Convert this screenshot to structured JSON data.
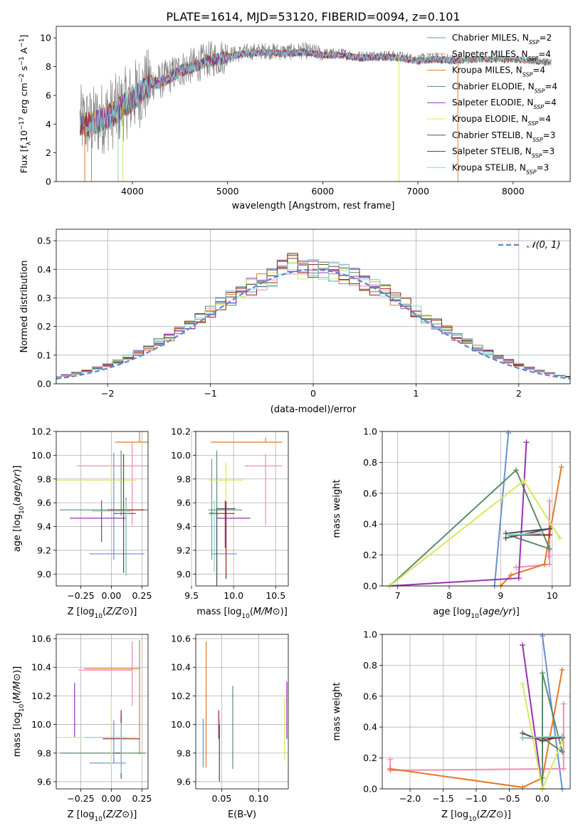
{
  "figure_title": "PLATE=1614, MJD=53120, FIBERID=0094, z=0.101",
  "colors": {
    "chab_miles": "#6a8fd6",
    "salp_miles": "#f28ab0",
    "krou_miles": "#e07b2a",
    "chab_elodie": "#5e8c6a",
    "salp_elodie": "#9a30b0",
    "krou_elodie": "#d4ea5c",
    "chab_stelib": "#505050",
    "salp_stelib": "#9a1c1c",
    "krou_stelib": "#7fd6d2",
    "data": "#808080"
  },
  "chart_data": [
    {
      "id": "spectrum",
      "type": "line",
      "title": "",
      "xlabel": "wavelength [Angstrom, rest frame]",
      "ylabel": "Flux [f_λ10^-17 erg cm^-2 s^-1 A^-1]",
      "xlim": [
        3200,
        8600
      ],
      "ylim": [
        0,
        10.8
      ],
      "xticks": [
        "4000",
        "5000",
        "6000",
        "7000",
        "8000"
      ],
      "yticks": [
        "0",
        "2",
        "4",
        "6",
        "8",
        "10"
      ],
      "grid": false,
      "legend_position": "right",
      "legend": [
        {
          "base": "Chabrier MILES, N",
          "sub": "SSP",
          "tail": "=2",
          "color": "chab_miles"
        },
        {
          "base": "Salpeter MILES, N",
          "sub": "SSP",
          "tail": "=4",
          "color": "salp_miles"
        },
        {
          "base": "Kroupa MILES, N",
          "sub": "SSP",
          "tail": "=4",
          "color": "krou_miles"
        },
        {
          "base": "Chabrier ELODIE, N",
          "sub": "SSP",
          "tail": "=4",
          "color": "chab_elodie"
        },
        {
          "base": "Salpeter ELODIE, N",
          "sub": "SSP",
          "tail": "=4",
          "color": "salp_elodie"
        },
        {
          "base": "Kroupa ELODIE, N",
          "sub": "SSP",
          "tail": "=4",
          "color": "krou_elodie"
        },
        {
          "base": "Chabrier STELIB, N",
          "sub": "SSP",
          "tail": "=3",
          "color": "chab_stelib"
        },
        {
          "base": "Salpeter STELIB, N",
          "sub": "SSP",
          "tail": "=3",
          "color": "salp_stelib"
        },
        {
          "base": "Kroupa STELIB, N",
          "sub": "SSP",
          "tail": "=3",
          "color": "krou_stelib"
        }
      ],
      "continuum": {
        "x": [
          3450,
          3550,
          3700,
          3800,
          3900,
          4000,
          4100,
          4200,
          4300,
          4400,
          4500,
          4600,
          4700,
          4800,
          4900,
          5000,
          5200,
          5400,
          5600,
          5800,
          6000,
          6200,
          6400,
          6600,
          6800,
          7000,
          7200,
          7400,
          7600,
          7800,
          8000,
          8200,
          8400
        ],
        "y": [
          4.2,
          4.0,
          4.5,
          4.8,
          5.3,
          5.8,
          6.4,
          6.9,
          7.0,
          7.4,
          7.8,
          8.0,
          8.2,
          8.5,
          8.6,
          8.8,
          9.0,
          9.1,
          9.0,
          9.1,
          8.9,
          8.9,
          8.7,
          8.8,
          8.7,
          8.5,
          8.6,
          8.5,
          8.6,
          8.6,
          8.6,
          8.5,
          8.4
        ]
      },
      "drops": [
        {
          "x": 3500,
          "color": "krou_miles"
        },
        {
          "x": 3570,
          "color": "krou_miles"
        },
        {
          "x": 3850,
          "color": "krou_stelib"
        },
        {
          "x": 3900,
          "color": "krou_elodie"
        },
        {
          "x": 6800,
          "color": "krou_elodie"
        },
        {
          "x": 7420,
          "color": "krou_miles"
        }
      ]
    },
    {
      "id": "residuals",
      "type": "bar",
      "title": "",
      "xlabel": "(data-model)/error",
      "ylabel": "Normed distribution",
      "xlim": [
        -2.5,
        2.5
      ],
      "ylim": [
        0,
        0.54
      ],
      "xticks": [
        "−2",
        "−1",
        "0",
        "1",
        "2"
      ],
      "yticks": [
        "0.0",
        "0.1",
        "0.2",
        "0.3",
        "0.4",
        "0.5"
      ],
      "grid": true,
      "legend_position": "top-right",
      "legend_label": "𝒩(0, 1)",
      "gaussian_sigma": 1.0,
      "bin_width": 0.1,
      "bin_start": -2.5
    },
    {
      "id": "age_vs_Z",
      "type": "scatter",
      "xlabel": "Z [log10(Z/Z⊙)]",
      "ylabel": "age  [log10(age/yr)]",
      "xlim": [
        -0.45,
        0.3
      ],
      "ylim": [
        8.9,
        10.2
      ],
      "xticks": [
        "−0.25",
        "0.00",
        "0.25"
      ],
      "yticks": [
        "9.0",
        "9.2",
        "9.4",
        "9.6",
        "9.8",
        "10.0",
        "10.2"
      ],
      "grid": true,
      "points": [
        {
          "color": "chab_miles",
          "x": 0.02,
          "xerr": [
            0.2,
            0.25
          ],
          "y": 9.17,
          "yerr": [
            0.05,
            0.85
          ]
        },
        {
          "color": "salp_miles",
          "x": 0.17,
          "xerr": [
            0.45,
            0.25
          ],
          "y": 9.91,
          "yerr": [
            0.5,
            0.2
          ]
        },
        {
          "color": "krou_miles",
          "x": 0.23,
          "xerr": [
            0.2,
            0.21
          ],
          "y": 10.11,
          "yerr": [
            0.0,
            0.09
          ]
        },
        {
          "color": "chab_elodie",
          "x": 0.08,
          "xerr": [
            0.5,
            0.4
          ],
          "y": 9.54,
          "yerr": [
            0.05,
            0.5
          ]
        },
        {
          "color": "salp_elodie",
          "x": -0.08,
          "xerr": [
            0.26,
            0.2
          ],
          "y": 9.47,
          "yerr": [
            0.2,
            0.15
          ]
        },
        {
          "color": "krou_elodie",
          "x": 0.0,
          "xerr": [
            0.45,
            0.2
          ],
          "y": 9.79,
          "yerr": [
            0.15,
            0.15
          ]
        },
        {
          "color": "chab_stelib",
          "x": 0.1,
          "xerr": [
            0.08,
            0.1
          ],
          "y": 9.51,
          "yerr": [
            0.5,
            0.5
          ]
        },
        {
          "color": "salp_stelib",
          "x": 0.12,
          "xerr": [
            0.15,
            0.15
          ],
          "y": 9.54,
          "yerr": [
            0.55,
            0.1
          ]
        },
        {
          "color": "krou_stelib",
          "x": 0.12,
          "xerr": [
            0.28,
            0.04
          ],
          "y": 9.53,
          "yerr": [
            0.55,
            0.1
          ]
        }
      ]
    },
    {
      "id": "age_vs_mass",
      "type": "scatter",
      "xlabel": "mass [log10(M/M⊙)]",
      "ylabel": "",
      "xlim": [
        9.55,
        10.65
      ],
      "ylim": [
        8.9,
        10.2
      ],
      "xticks": [
        "9.5",
        "10.0",
        "10.5"
      ],
      "yticks": [
        "9.0",
        "9.2",
        "9.4",
        "9.6",
        "9.8",
        "10.0",
        "10.2"
      ],
      "grid": true,
      "points": [
        {
          "color": "chab_miles",
          "x": 9.74,
          "xerr": [
            0.0,
            0.3
          ],
          "y": 9.17,
          "yerr": [
            0.05,
            0.8
          ]
        },
        {
          "color": "salp_miles",
          "x": 10.38,
          "xerr": [
            0.25,
            0.2
          ],
          "y": 9.91,
          "yerr": [
            0.5,
            0.1
          ]
        },
        {
          "color": "krou_miles",
          "x": 10.38,
          "xerr": [
            0.65,
            0.2
          ],
          "y": 10.11,
          "yerr": [
            0.0,
            0.04
          ]
        },
        {
          "color": "chab_elodie",
          "x": 9.8,
          "xerr": [
            0.1,
            0.3
          ],
          "y": 9.54,
          "yerr": [
            0.6,
            0.5
          ]
        },
        {
          "color": "salp_elodie",
          "x": 9.9,
          "xerr": [
            0.1,
            0.3
          ],
          "y": 9.47,
          "yerr": [
            0.25,
            0.15
          ]
        },
        {
          "color": "krou_elodie",
          "x": 9.91,
          "xerr": [
            0.2,
            0.2
          ],
          "y": 9.79,
          "yerr": [
            0.2,
            0.15
          ]
        },
        {
          "color": "chab_stelib",
          "x": 9.8,
          "xerr": [
            0.0,
            0.22
          ],
          "y": 9.55,
          "yerr": [
            0.65,
            0.0
          ]
        },
        {
          "color": "salp_stelib",
          "x": 9.91,
          "xerr": [
            0.2,
            0.1
          ],
          "y": 9.51,
          "yerr": [
            0.55,
            0.1
          ]
        },
        {
          "color": "krou_stelib",
          "x": 9.77,
          "xerr": [
            0.05,
            0.0
          ],
          "y": 9.52,
          "yerr": [
            0.5,
            0.1
          ]
        }
      ]
    },
    {
      "id": "mass_weight_vs_age",
      "type": "line",
      "xlabel": "age  [log10(age/yr)]",
      "ylabel": "mass weight",
      "xlim": [
        6.7,
        10.35
      ],
      "ylim": [
        0,
        1
      ],
      "xticks": [
        "7",
        "8",
        "9",
        "10"
      ],
      "yticks": [
        "0.0",
        "0.2",
        "0.4",
        "0.6",
        "0.8",
        "1.0"
      ],
      "grid": true,
      "series": [
        {
          "color": "chab_miles",
          "x": [
            8.88,
            9.15
          ],
          "y": [
            0.0,
            0.99
          ]
        },
        {
          "color": "salp_miles",
          "x": [
            9.3,
            9.95,
            9.95,
            9.93
          ],
          "y": [
            0.12,
            0.14,
            0.55,
            0.19
          ]
        },
        {
          "color": "krou_miles",
          "x": [
            9.0,
            9.2,
            9.85,
            10.18
          ],
          "y": [
            0.0,
            0.07,
            0.14,
            0.77
          ]
        },
        {
          "color": "chab_elodie",
          "x": [
            6.85,
            9.3,
            9.95,
            9.15
          ],
          "y": [
            0.0,
            0.75,
            0.24,
            0.33
          ]
        },
        {
          "color": "salp_elodie",
          "x": [
            6.85,
            9.35,
            9.5
          ],
          "y": [
            0.0,
            0.05,
            0.93
          ]
        },
        {
          "color": "krou_elodie",
          "x": [
            6.85,
            9.45,
            10.15
          ],
          "y": [
            0.0,
            0.68,
            0.31
          ]
        },
        {
          "color": "chab_stelib",
          "x": [
            9.1,
            9.95,
            9.1
          ],
          "y": [
            0.31,
            0.37,
            0.34
          ]
        },
        {
          "color": "salp_stelib",
          "x": [
            9.15,
            9.95
          ],
          "y": [
            0.33,
            0.33
          ]
        },
        {
          "color": "krou_stelib",
          "x": [
            9.15,
            9.8
          ],
          "y": [
            0.33,
            0.34
          ]
        }
      ]
    },
    {
      "id": "mass_vs_Z",
      "type": "scatter",
      "xlabel": "Z [log10(Z/Z⊙)]",
      "ylabel": "mass [log10(M/M⊙)]",
      "xlim": [
        -0.45,
        0.3
      ],
      "ylim": [
        9.55,
        10.63
      ],
      "xticks": [
        "−0.25",
        "0.00",
        "0.25"
      ],
      "yticks": [
        "9.6",
        "9.8",
        "10.0",
        "10.2",
        "10.4",
        "10.6"
      ],
      "grid": true,
      "points": [
        {
          "color": "chab_miles",
          "x": 0.02,
          "xerr": [
            0.2,
            0.1
          ],
          "y": 9.73,
          "yerr": [
            0.0,
            0.3
          ]
        },
        {
          "color": "salp_miles",
          "x": 0.17,
          "xerr": [
            0.44,
            0.0
          ],
          "y": 10.38,
          "yerr": [
            0.25,
            0.2
          ]
        },
        {
          "color": "krou_miles",
          "x": 0.23,
          "xerr": [
            0.45,
            0.0
          ],
          "y": 10.39,
          "yerr": [
            0.6,
            0.2
          ]
        },
        {
          "color": "chab_elodie",
          "x": 0.08,
          "xerr": [
            0.5,
            0.2
          ],
          "y": 9.8,
          "yerr": [
            0.1,
            0.26
          ]
        },
        {
          "color": "salp_elodie",
          "x": -0.3,
          "xerr": [
            0.0,
            0.0
          ],
          "y": 10.01,
          "yerr": [
            0.1,
            0.28
          ]
        },
        {
          "color": "krou_elodie",
          "x": 0.0,
          "xerr": [
            0.45,
            0.2
          ],
          "y": 9.91,
          "yerr": [
            0.2,
            0.28
          ]
        },
        {
          "color": "chab_stelib",
          "x": 0.08,
          "xerr": [
            0.05,
            0.0
          ],
          "y": 9.8,
          "yerr": [
            0.18,
            0.14
          ]
        },
        {
          "color": "salp_stelib",
          "x": 0.08,
          "xerr": [
            0.15,
            0.15
          ],
          "y": 9.9,
          "yerr": [
            0.2,
            0.2
          ]
        },
        {
          "color": "krou_stelib",
          "x": 0.08,
          "xerr": [
            0.3,
            0.05
          ],
          "y": 9.91,
          "yerr": [
            0.25,
            0.1
          ]
        }
      ]
    },
    {
      "id": "mass_vs_EBV",
      "type": "scatter",
      "xlabel": "E(B-V)",
      "ylabel": "",
      "xlim": [
        0.015,
        0.14
      ],
      "ylim": [
        9.55,
        10.63
      ],
      "xticks": [
        "0.05",
        "0.10"
      ],
      "yticks": [
        "9.6",
        "9.8",
        "10.0",
        "10.2",
        "10.4",
        "10.6"
      ],
      "grid": true,
      "points": [
        {
          "color": "chab_miles",
          "x": 0.025,
          "xerr": [
            0,
            0
          ],
          "y": 9.87,
          "yerr": [
            0.17,
            0.17
          ]
        },
        {
          "color": "krou_miles",
          "x": 0.029,
          "xerr": [
            0,
            0
          ],
          "y": 10.15,
          "yerr": [
            0.45,
            0.43
          ]
        },
        {
          "color": "salp_stelib",
          "x": 0.046,
          "xerr": [
            0,
            0
          ],
          "y": 10.0,
          "yerr": [
            0.1,
            0.1
          ]
        },
        {
          "color": "krou_stelib",
          "x": 0.047,
          "xerr": [
            0,
            0
          ],
          "y": 9.8,
          "yerr": [
            0.18,
            0.24
          ]
        },
        {
          "color": "chab_stelib",
          "x": 0.047,
          "xerr": [
            0,
            0
          ],
          "y": 9.8,
          "yerr": [
            0.2,
            0.2
          ]
        },
        {
          "color": "chab_elodie",
          "x": 0.065,
          "xerr": [
            0,
            0
          ],
          "y": 9.97,
          "yerr": [
            0.28,
            0.3
          ]
        },
        {
          "color": "krou_elodie",
          "x": 0.135,
          "xerr": [
            0,
            0
          ],
          "y": 9.97,
          "yerr": [
            0.22,
            0.22
          ]
        },
        {
          "color": "salp_elodie",
          "x": 0.138,
          "xerr": [
            0,
            0
          ],
          "y": 10.1,
          "yerr": [
            0.2,
            0.2
          ]
        }
      ]
    },
    {
      "id": "mass_weight_vs_Z",
      "type": "line",
      "xlabel": "Z [log10(Z/Z⊙)]",
      "ylabel": "mass weight",
      "xlim": [
        -2.42,
        0.42
      ],
      "ylim": [
        0,
        1
      ],
      "xticks": [
        "−2.0",
        "−1.5",
        "−1.0",
        "−0.5",
        "0.0"
      ],
      "yticks": [
        "0.0",
        "0.2",
        "0.4",
        "0.6",
        "0.8",
        "1.0"
      ],
      "grid": true,
      "series": [
        {
          "color": "chab_miles",
          "x": [
            0.0,
            0.3
          ],
          "y": [
            0.99,
            0.0
          ]
        },
        {
          "color": "salp_miles",
          "x": [
            -2.3,
            -2.3,
            0.32,
            0.32
          ],
          "y": [
            0.19,
            0.12,
            0.13,
            0.55
          ]
        },
        {
          "color": "krou_miles",
          "x": [
            -2.3,
            -0.3,
            0.0,
            0.3
          ],
          "y": [
            0.13,
            0.01,
            0.07,
            0.77
          ]
        },
        {
          "color": "chab_elodie",
          "x": [
            0.0,
            0.0,
            0.3,
            0.0
          ],
          "y": [
            0.0,
            0.75,
            0.24,
            0.33
          ]
        },
        {
          "color": "salp_elodie",
          "x": [
            -0.3,
            0.0
          ],
          "y": [
            0.93,
            0.0
          ]
        },
        {
          "color": "krou_elodie",
          "x": [
            -0.3,
            0.0,
            0.3
          ],
          "y": [
            0.68,
            0.0,
            0.31
          ]
        },
        {
          "color": "chab_stelib",
          "x": [
            -0.3,
            0.0,
            0.3
          ],
          "y": [
            0.36,
            0.31,
            0.34
          ]
        },
        {
          "color": "salp_stelib",
          "x": [
            -0.3,
            0.3
          ],
          "y": [
            0.33,
            0.33
          ]
        },
        {
          "color": "krou_stelib",
          "x": [
            -0.3,
            0.3
          ],
          "y": [
            0.33,
            0.34
          ]
        }
      ]
    }
  ]
}
